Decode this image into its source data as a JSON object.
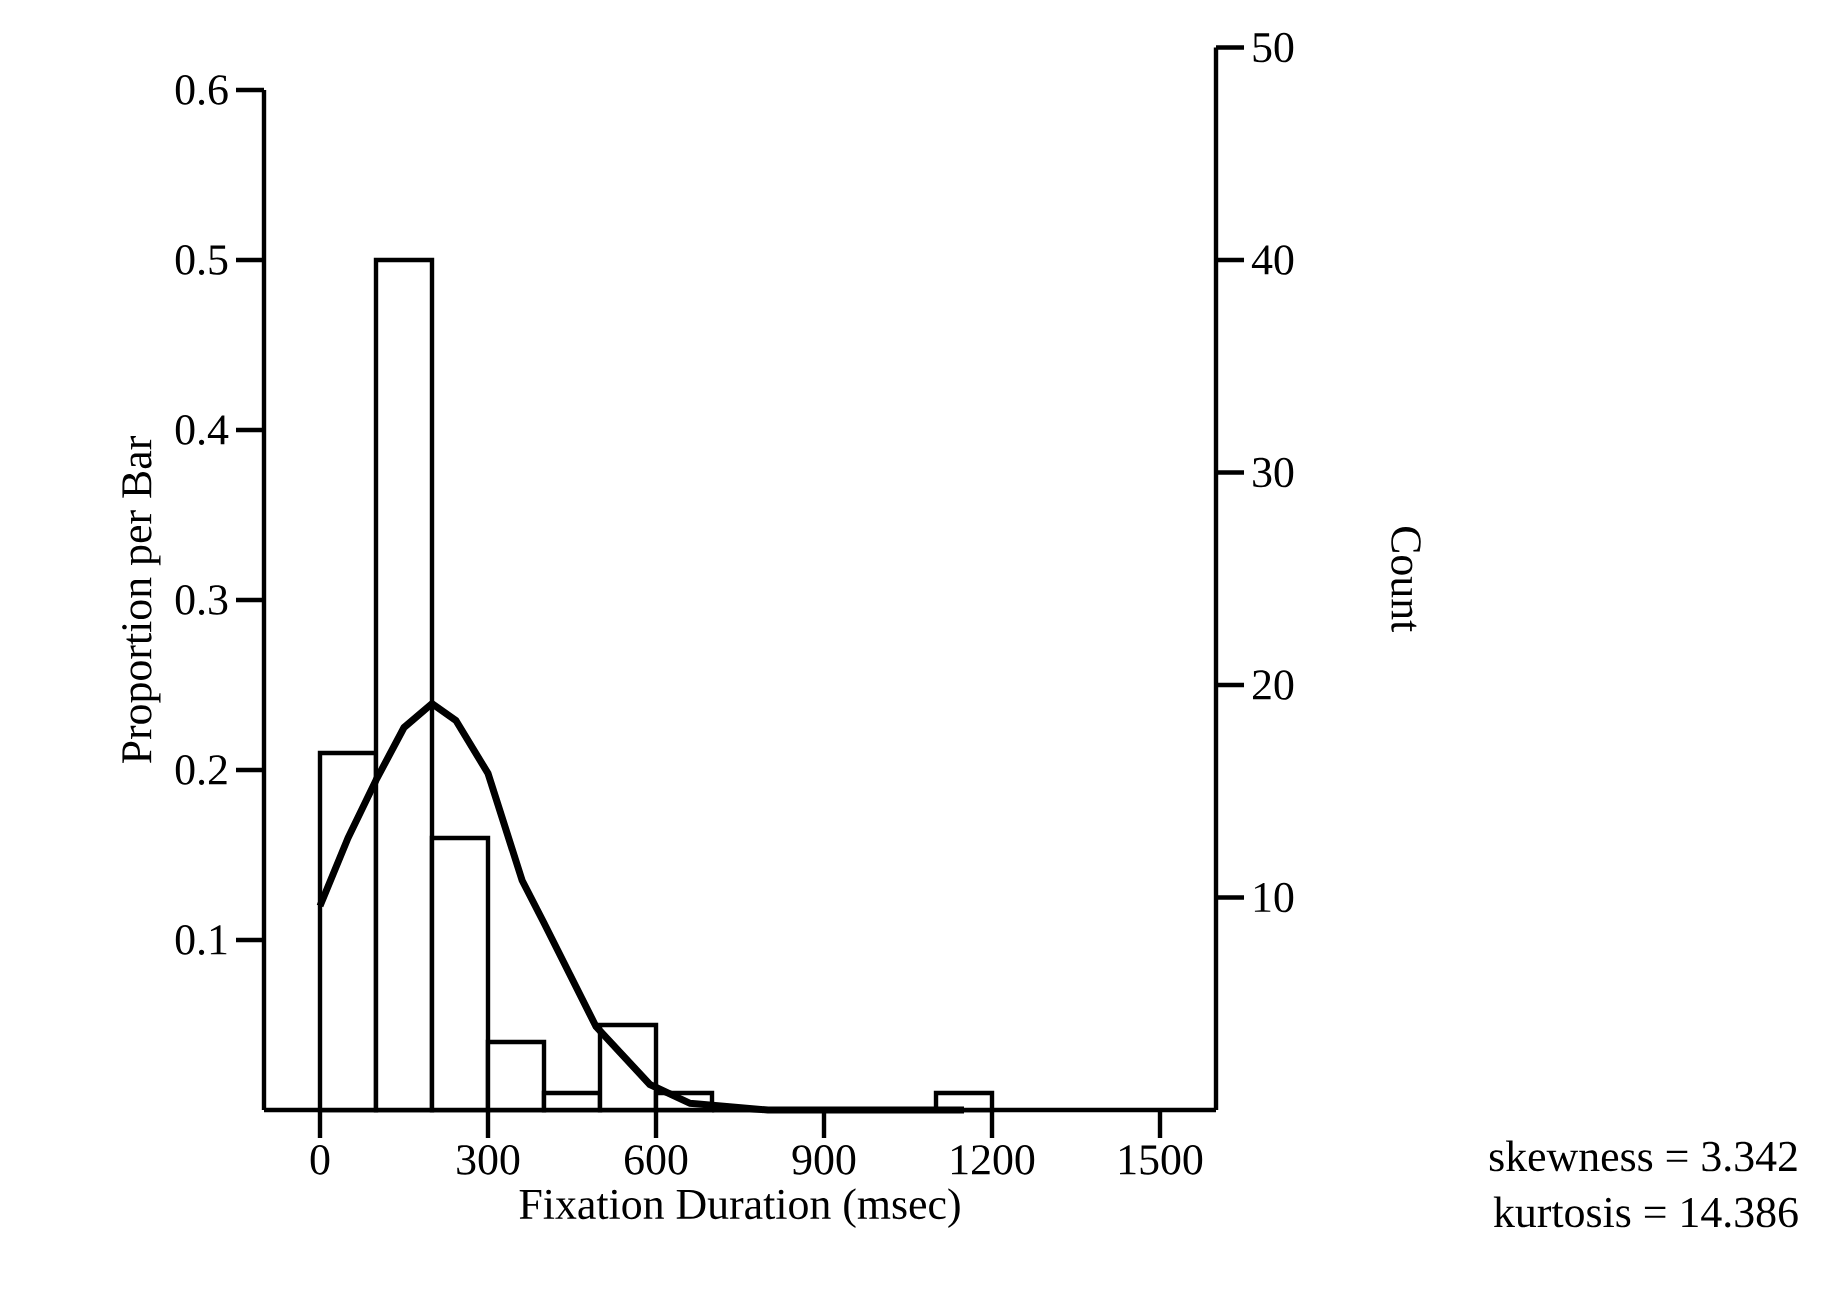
{
  "chart_data": {
    "type": "histogram",
    "xlabel": "Fixation Duration (msec)",
    "ylabel": "Proportion per Bar",
    "y2label": "Count",
    "bins": [
      0,
      100,
      200,
      300,
      400,
      500,
      600,
      700,
      800,
      900,
      1000,
      1100,
      1200
    ],
    "values": [
      0.21,
      0.5,
      0.16,
      0.04,
      0.01,
      0.05,
      0.01,
      0,
      0,
      0,
      0,
      0.01
    ],
    "color": "#000000",
    "series": [
      {
        "type": "line",
        "color": "#000000",
        "x": [
          0,
          50,
          100,
          150,
          200,
          243,
          300,
          361,
          400,
          493,
          589,
          660,
          800,
          1000,
          1150
        ],
        "values": [
          0.12,
          0.16,
          0.194,
          0.225,
          0.239,
          0.229,
          0.198,
          0.135,
          0.11,
          0.049,
          0.015,
          0.004,
          0,
          0,
          0
        ]
      }
    ],
    "xlim": [
      -100,
      1600
    ],
    "xticks": [
      0,
      300,
      600,
      900,
      1200,
      1500
    ],
    "ylim": [
      0,
      0.6
    ],
    "yticks": [
      0.1,
      0.2,
      0.3,
      0.4,
      0.5,
      0.6
    ],
    "y2lim": [
      0,
      50
    ],
    "y2ticks": [
      10,
      20,
      30,
      40,
      50
    ],
    "annotations": [
      "skewness = 3.342",
      "kurtosis = 14.386"
    ]
  }
}
